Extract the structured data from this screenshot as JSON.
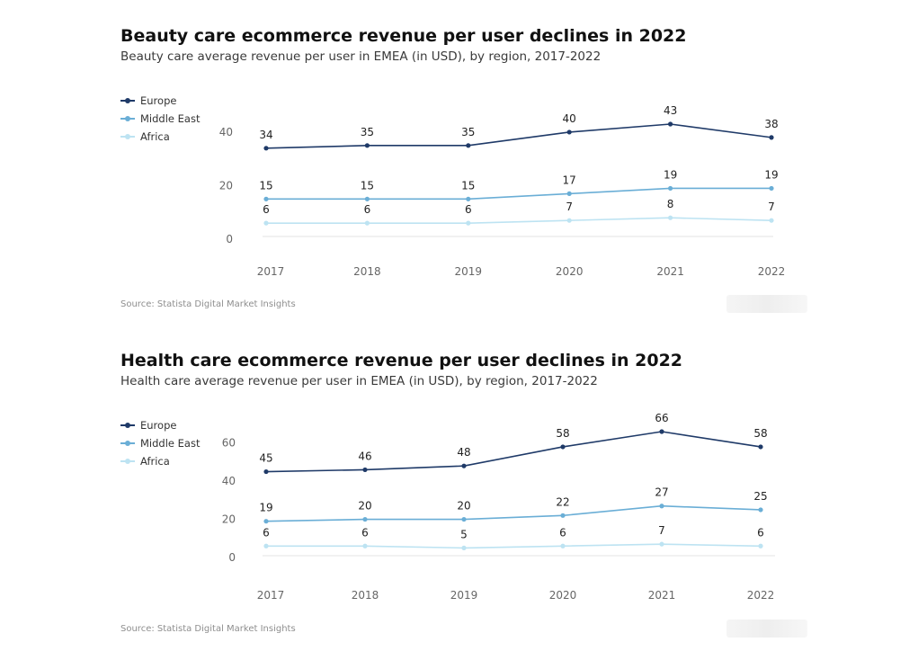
{
  "colors": {
    "europe": "#1f3a68",
    "middle_east": "#6aaed6",
    "africa": "#bde3f2",
    "axis": "#e3e3e3"
  },
  "source_text": "Source: Statista Digital Market Insights",
  "legend": [
    "Europe",
    "Middle East",
    "Africa"
  ],
  "chart_data": [
    {
      "type": "line",
      "title": "Beauty care ecommerce revenue per user declines in 2022",
      "subtitle": "Beauty care average revenue per user in EMEA (in USD), by region, 2017-2022",
      "x": [
        "2017",
        "2018",
        "2019",
        "2020",
        "2021",
        "2022"
      ],
      "series": [
        {
          "name": "Europe",
          "values": [
            34,
            35,
            35,
            40,
            43,
            38
          ]
        },
        {
          "name": "Middle East",
          "values": [
            15,
            15,
            15,
            17,
            19,
            19
          ]
        },
        {
          "name": "Africa",
          "values": [
            6,
            6,
            6,
            7,
            8,
            7
          ]
        }
      ],
      "yticks": [
        0,
        20,
        40
      ],
      "ylim": [
        0,
        43
      ],
      "legend_position": "top-left",
      "grid": false
    },
    {
      "type": "line",
      "title": "Health care ecommerce revenue per user declines in 2022",
      "subtitle": "Health care average revenue per user in EMEA (in USD), by region, 2017-2022",
      "x": [
        "2017",
        "2018",
        "2019",
        "2020",
        "2021",
        "2022"
      ],
      "series": [
        {
          "name": "Europe",
          "values": [
            45,
            46,
            48,
            58,
            66,
            58
          ]
        },
        {
          "name": "Middle East",
          "values": [
            19,
            20,
            20,
            22,
            27,
            25
          ]
        },
        {
          "name": "Africa",
          "values": [
            6,
            6,
            5,
            6,
            7,
            6
          ]
        }
      ],
      "yticks": [
        0,
        20,
        40,
        60
      ],
      "ylim": [
        0,
        66
      ],
      "legend_position": "top-left",
      "grid": false
    }
  ]
}
